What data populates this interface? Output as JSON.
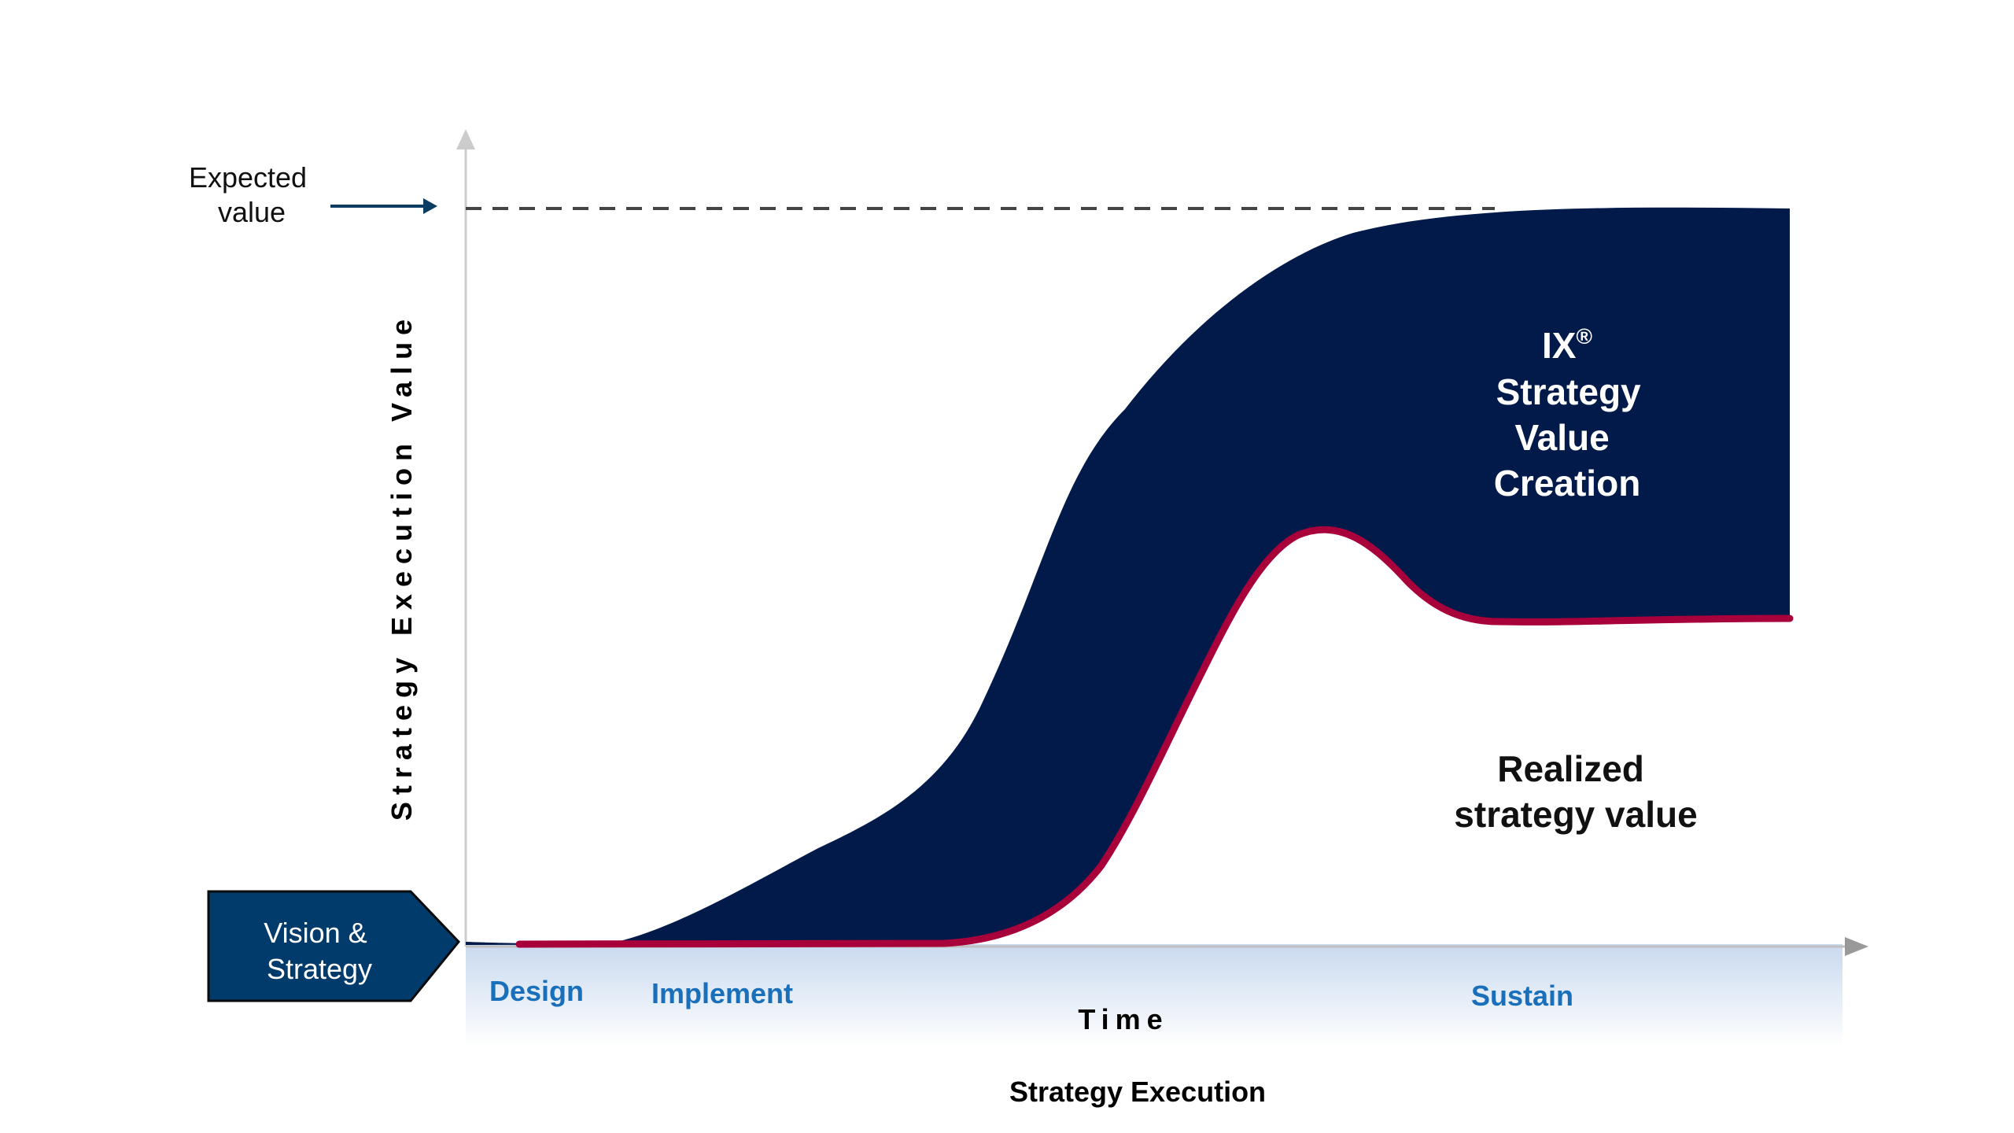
{
  "labels": {
    "expected_value_line1": "Expected",
    "expected_value_line2": "value",
    "y_axis": "Strategy Execution Value",
    "x_axis_time": "Time",
    "footer": "Strategy Execution",
    "vision_line1": "Vision &",
    "vision_line2": "Strategy",
    "phase_design": "Design",
    "phase_implement": "Implement",
    "phase_sustain": "Sustain",
    "ix_line1": "IX",
    "ix_registered": "®",
    "ix_line2": "Strategy",
    "ix_line3": "Value",
    "ix_line4": "Creation",
    "realized_line1": "Realized",
    "realized_line2": "strategy value"
  },
  "colors": {
    "navy_fill": "#011a4a",
    "realized_line": "#a8003a",
    "vision_box": "#003b6b",
    "phase_text": "#1a6fba",
    "axis": "#c8c8c8",
    "arrow": "#0b3d63",
    "band_top": "#c9d9ef"
  }
}
